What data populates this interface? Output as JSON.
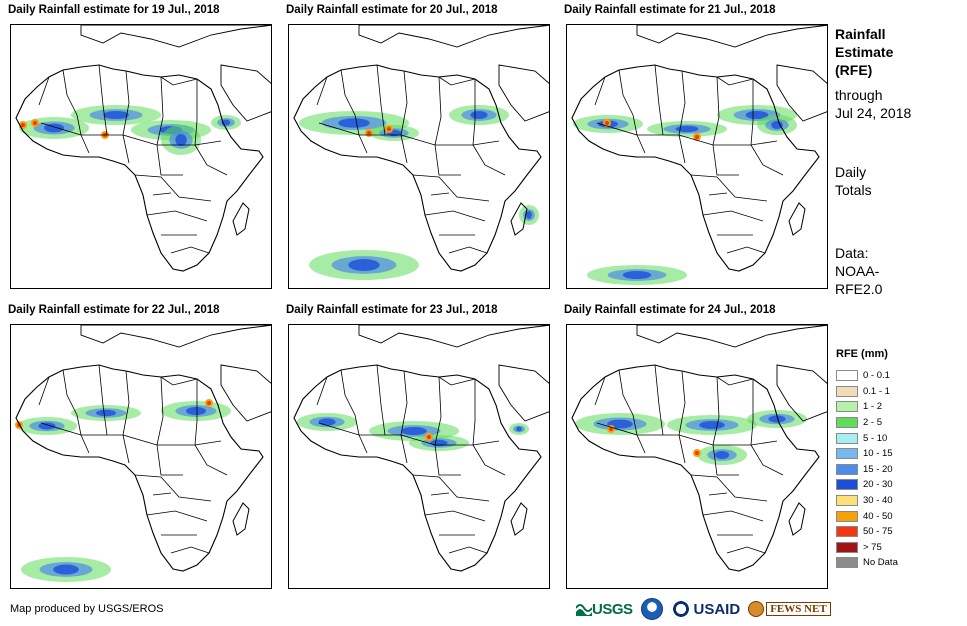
{
  "panels": [
    {
      "title": "Daily Rainfall estimate for 19 Jul., 2018"
    },
    {
      "title": "Daily Rainfall estimate for 20 Jul., 2018"
    },
    {
      "title": "Daily Rainfall estimate for 21 Jul., 2018"
    },
    {
      "title": "Daily Rainfall estimate for 22 Jul., 2018"
    },
    {
      "title": "Daily Rainfall estimate for 23 Jul., 2018"
    },
    {
      "title": "Daily Rainfall estimate for 24 Jul., 2018"
    }
  ],
  "side": {
    "title_line1": "Rainfall",
    "title_line2": "Estimate",
    "title_line3": "(RFE)",
    "through_line1": "through",
    "through_line2": "Jul 24, 2018",
    "daily_line1": "Daily",
    "daily_line2": "Totals",
    "data_line1": "Data:",
    "data_line2": "NOAA-",
    "data_line3": "RFE2.0"
  },
  "legend": {
    "title": "RFE (mm)",
    "items": [
      {
        "label": "0 - 0.1",
        "color": "#ffffff"
      },
      {
        "label": "0.1 - 1",
        "color": "#f2dcb8"
      },
      {
        "label": "1 - 2",
        "color": "#b7f2a9"
      },
      {
        "label": "2 - 5",
        "color": "#5fdc5a"
      },
      {
        "label": "5 - 10",
        "color": "#a6eef2"
      },
      {
        "label": "10 - 15",
        "color": "#79b8ee"
      },
      {
        "label": "15 - 20",
        "color": "#4d8ce6"
      },
      {
        "label": "20 - 30",
        "color": "#1c4fd9"
      },
      {
        "label": "30 - 40",
        "color": "#fde078"
      },
      {
        "label": "40 - 50",
        "color": "#f5a20a"
      },
      {
        "label": "50 - 75",
        "color": "#f2380e"
      },
      {
        "label": "> 75",
        "color": "#a01414"
      },
      {
        "label": "No Data",
        "color": "#8c8c8c"
      }
    ]
  },
  "credit": "Map produced by USGS/EROS",
  "logos": {
    "usgs": "USGS",
    "usaid": "USAID",
    "fews": "FEWS NET"
  }
}
